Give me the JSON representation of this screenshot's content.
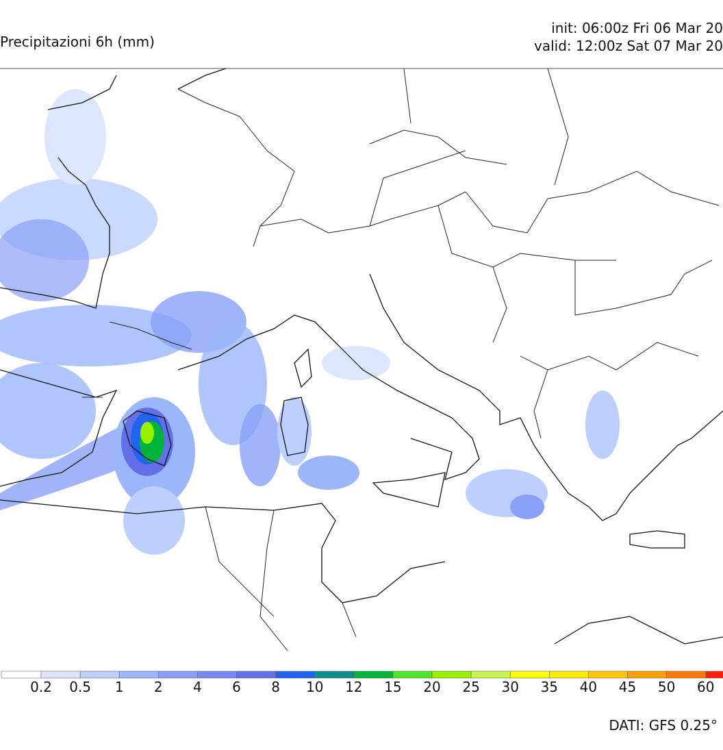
{
  "header": {
    "title": "Precipitazioni 6h (mm)",
    "init": "init: 06:00z Fri 06 Mar 20",
    "valid": "valid: 12:00z Sat 07 Mar 20"
  },
  "colorbar": {
    "labels": [
      "0.2",
      "0.5",
      "1",
      "2",
      "4",
      "6",
      "8",
      "10",
      "12",
      "15",
      "20",
      "25",
      "30",
      "35",
      "40",
      "45",
      "50",
      "60"
    ],
    "colors": [
      "#ffffff",
      "#dce6ff",
      "#bccfff",
      "#9cb6fb",
      "#8aa0f7",
      "#7b88f2",
      "#6470e8",
      "#1e64f0",
      "#0c8c8c",
      "#00b43c",
      "#50e628",
      "#96f000",
      "#c8f550",
      "#ffff00",
      "#ffeb00",
      "#ffc800",
      "#ffa000",
      "#ff7800",
      "#ff1e00"
    ]
  },
  "footer": {
    "source": "DATI:  GFS  0.25°"
  }
}
